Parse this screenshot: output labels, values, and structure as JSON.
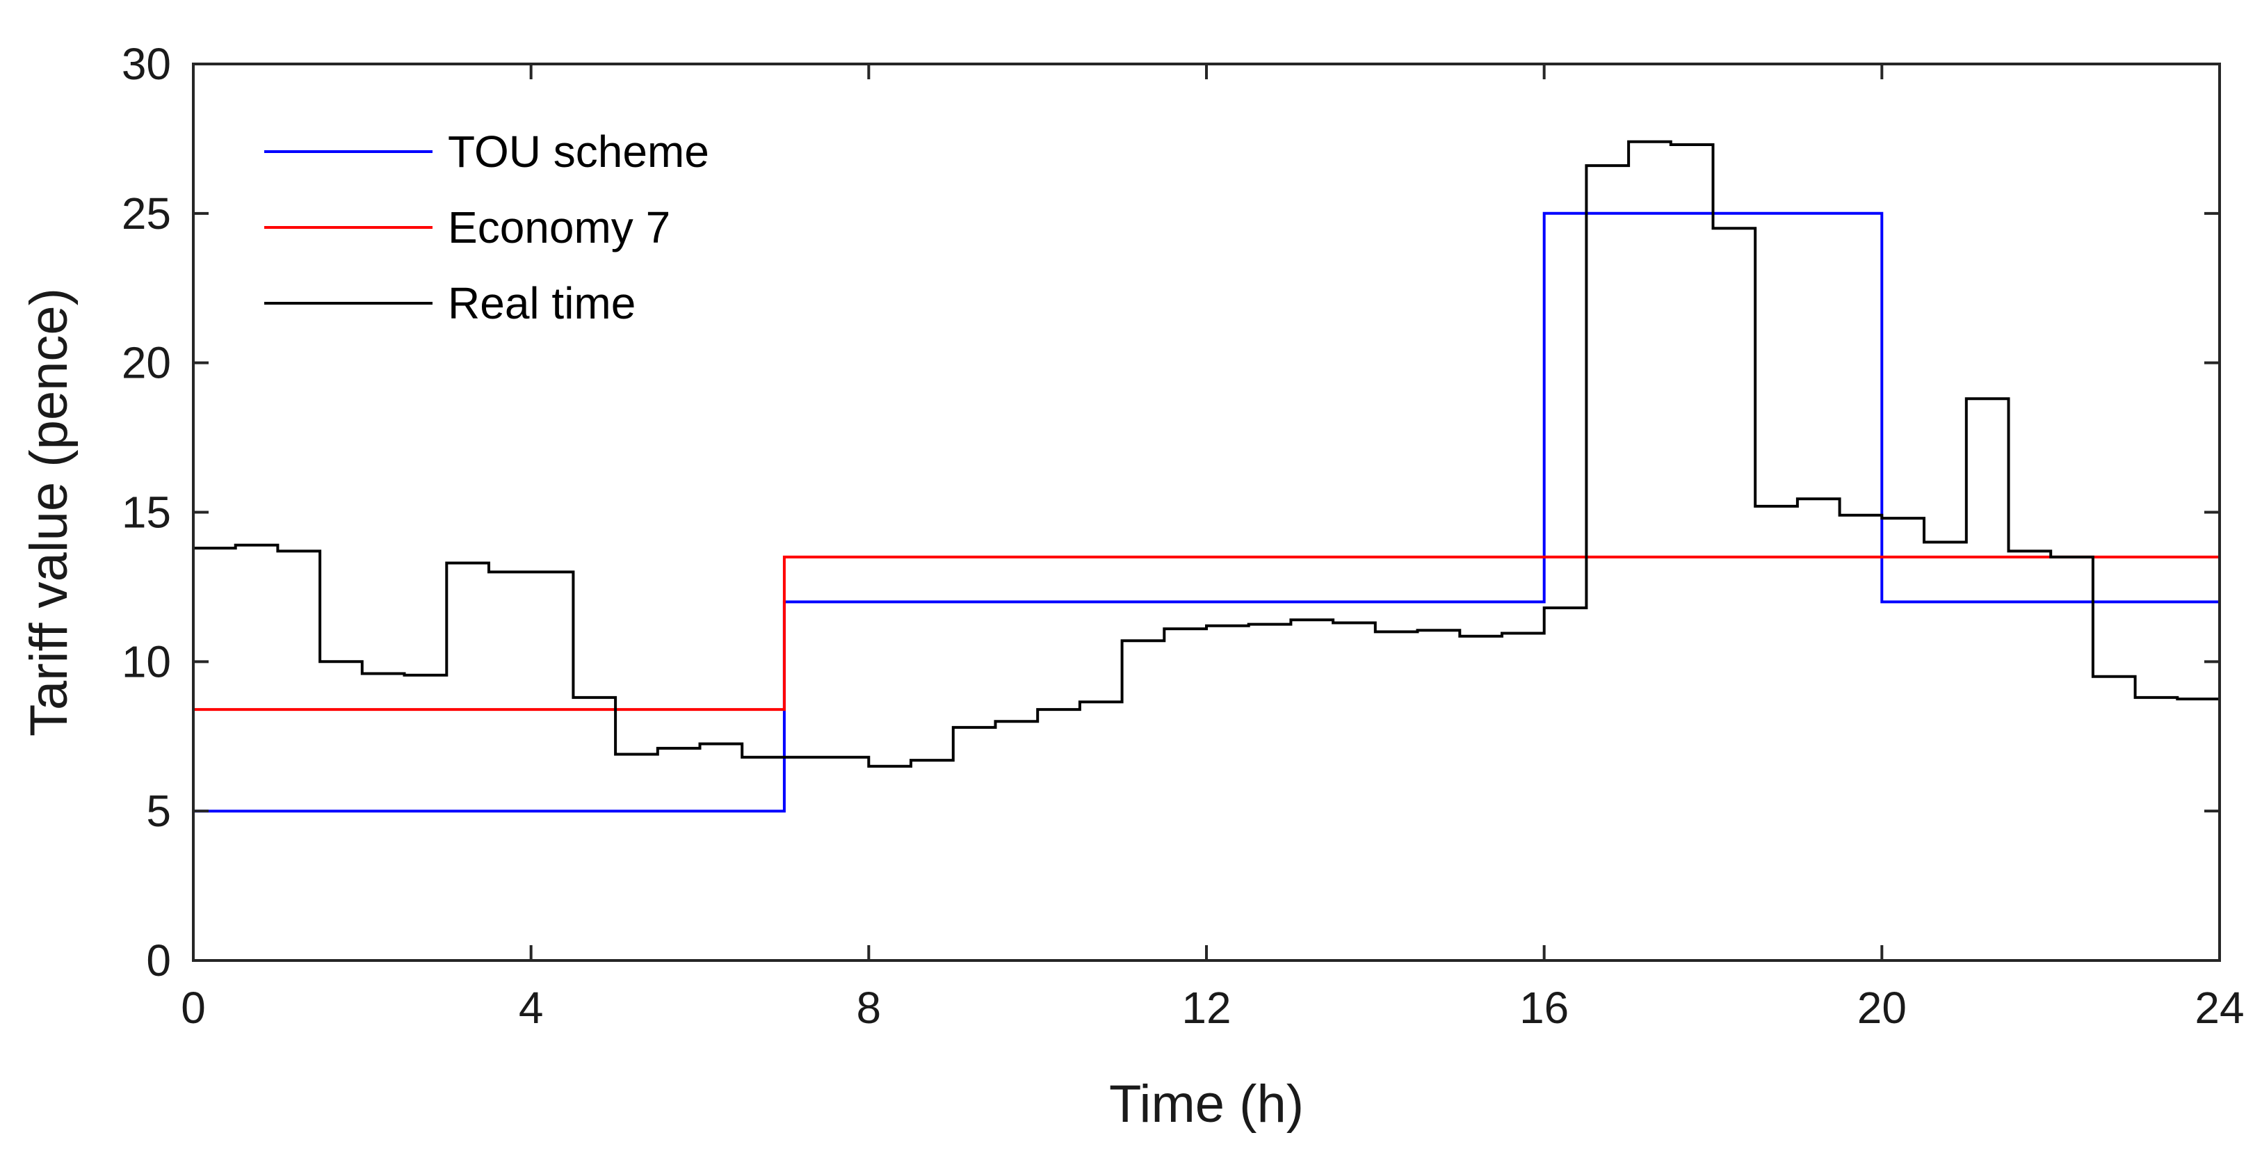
{
  "chart_data": {
    "type": "line",
    "step": true,
    "xlabel": "Time (h)",
    "ylabel": "Tariff value  (pence)",
    "xlim": [
      0,
      24
    ],
    "ylim": [
      0,
      30
    ],
    "xticks": [
      0,
      4,
      8,
      12,
      16,
      20,
      24
    ],
    "yticks": [
      0,
      5,
      10,
      15,
      20,
      25,
      30
    ],
    "grid": false,
    "legend_position": "top-left",
    "series": [
      {
        "name": "TOU  scheme",
        "color": "#0000ff",
        "x": [
          0,
          7,
          16,
          20,
          24
        ],
        "values": [
          5,
          12,
          25,
          12,
          12
        ]
      },
      {
        "name": "Economy 7",
        "color": "#ff0000",
        "x": [
          0,
          7,
          24
        ],
        "values": [
          8.4,
          13.5,
          13.5
        ]
      },
      {
        "name": "Real time",
        "color": "#000000",
        "x": [
          0,
          0.5,
          1,
          1.5,
          2,
          2.5,
          3,
          3.5,
          4,
          4.5,
          5,
          5.5,
          6,
          6.5,
          7,
          7.5,
          8,
          8.5,
          9,
          9.5,
          10,
          10.5,
          11,
          11.5,
          12,
          12.5,
          13,
          13.5,
          14,
          14.5,
          15,
          15.5,
          16,
          16.5,
          17,
          17.5,
          18,
          18.5,
          19,
          19.5,
          20,
          20.5,
          21,
          21.5,
          22,
          22.5,
          23,
          23.5,
          24
        ],
        "values": [
          13.8,
          13.9,
          13.7,
          10.0,
          9.6,
          9.55,
          13.3,
          13.0,
          13.0,
          8.8,
          6.9,
          7.1,
          7.25,
          6.8,
          6.8,
          6.8,
          6.5,
          6.7,
          7.8,
          8.0,
          8.4,
          8.65,
          10.7,
          11.1,
          11.2,
          11.25,
          11.4,
          11.3,
          11.0,
          11.05,
          10.85,
          10.95,
          11.8,
          26.6,
          27.4,
          27.3,
          24.5,
          15.2,
          15.45,
          14.9,
          14.8,
          14.0,
          18.8,
          13.7,
          13.5,
          9.5,
          8.8,
          8.75,
          8.75
        ]
      }
    ]
  }
}
